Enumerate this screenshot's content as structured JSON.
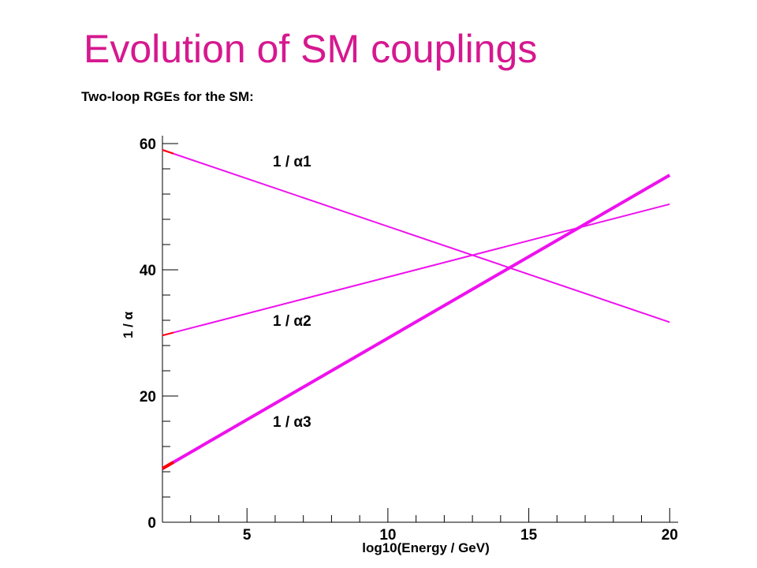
{
  "slide": {
    "title": "Evolution of SM couplings",
    "subtitle": "Two-loop RGEs for the SM:"
  },
  "colors": {
    "title": "#d6188f",
    "series": "#ee11ee",
    "start_marker": "#ff0000"
  },
  "chart_data": {
    "type": "line",
    "title": "",
    "xlabel": "log10(Energy / GeV)",
    "ylabel": "1 / α",
    "xlim": [
      2,
      20.3
    ],
    "ylim": [
      0,
      60
    ],
    "x_ticks": [
      5,
      10,
      15,
      20
    ],
    "y_ticks": [
      0,
      20,
      40,
      60
    ],
    "grid": false,
    "legend": "inline labels next to each curve",
    "series": [
      {
        "name": "1 / α1",
        "x": [
          2,
          20
        ],
        "values": [
          59.0,
          31.7
        ],
        "thick": false
      },
      {
        "name": "1 / α2",
        "x": [
          2,
          20
        ],
        "values": [
          29.6,
          50.4
        ],
        "thick": false
      },
      {
        "name": "1 / α3",
        "x": [
          2,
          20
        ],
        "values": [
          8.5,
          55.0
        ],
        "thick": true
      }
    ]
  }
}
